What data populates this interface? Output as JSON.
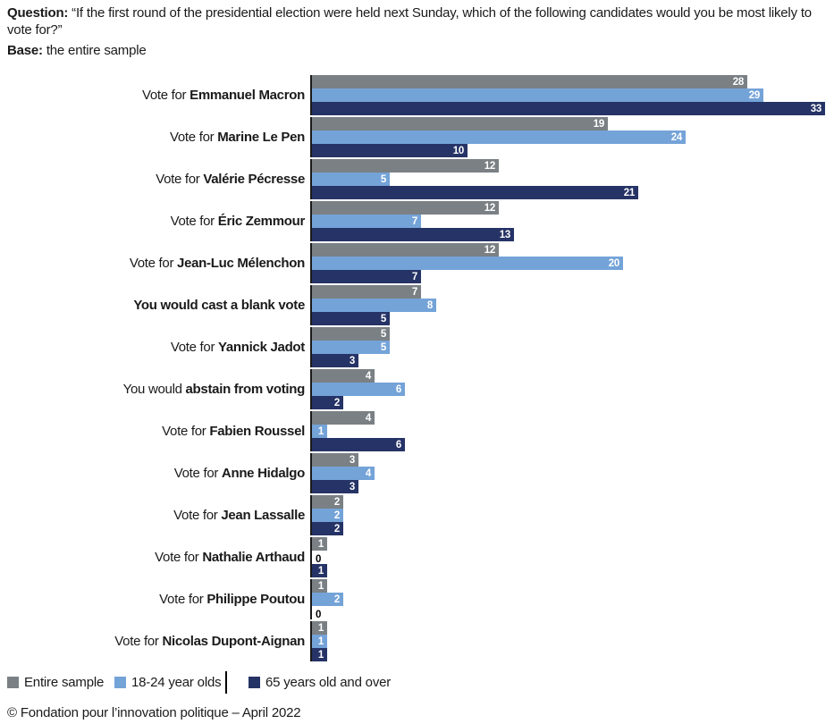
{
  "header": {
    "question_label": "Question:",
    "question_text": " “If the first round of the presidential election were held next Sunday, which of the following candidates would you be most likely to vote for?”",
    "base_label": "Base:",
    "base_text": " the entire sample"
  },
  "chart_data": {
    "type": "bar",
    "orientation": "horizontal",
    "value_unit": "percent",
    "xlim": [
      0,
      33
    ],
    "grid": false,
    "legend_position": "bottom",
    "value_labels": "inside-bar-end, white; zero values shown in black outside bar",
    "series": [
      {
        "name": "Entire sample",
        "color": "#7a8084"
      },
      {
        "name": "18-24 year olds",
        "color": "#74a3d8"
      },
      {
        "name": "65 years old and over",
        "color": "#263366"
      }
    ],
    "categories": [
      {
        "prefix": "Vote for ",
        "name": "Emmanuel Macron",
        "values": [
          28,
          29,
          33
        ]
      },
      {
        "prefix": "Vote for ",
        "name": "Marine Le Pen",
        "values": [
          19,
          24,
          10
        ]
      },
      {
        "prefix": "Vote for ",
        "name": "Valérie Pécresse",
        "values": [
          12,
          5,
          21
        ]
      },
      {
        "prefix": "Vote for ",
        "name": "Éric Zemmour",
        "values": [
          12,
          7,
          13
        ]
      },
      {
        "prefix": "Vote for ",
        "name": "Jean-Luc Mélenchon",
        "values": [
          12,
          20,
          7
        ]
      },
      {
        "prefix": "",
        "name": "You would cast a blank vote",
        "values": [
          7,
          8,
          5
        ]
      },
      {
        "prefix": "Vote for ",
        "name": "Yannick Jadot",
        "values": [
          5,
          5,
          3
        ]
      },
      {
        "prefix": "You would ",
        "name": "abstain from voting",
        "values": [
          4,
          6,
          2
        ]
      },
      {
        "prefix": "Vote for ",
        "name": "Fabien Roussel",
        "values": [
          4,
          1,
          6
        ]
      },
      {
        "prefix": "Vote for ",
        "name": "Anne Hidalgo",
        "values": [
          3,
          4,
          3
        ]
      },
      {
        "prefix": "Vote for ",
        "name": "Jean Lassalle",
        "values": [
          2,
          2,
          2
        ]
      },
      {
        "prefix": "Vote for ",
        "name": "Nathalie Arthaud",
        "values": [
          1,
          0,
          1
        ]
      },
      {
        "prefix": "Vote for ",
        "name": "Philippe Poutou",
        "values": [
          1,
          2,
          0
        ]
      },
      {
        "prefix": "Vote for ",
        "name": "Nicolas Dupont-Aignan",
        "values": [
          1,
          1,
          1
        ]
      }
    ]
  },
  "footer": {
    "copyright": "© Fondation pour l’innovation politique – April 2022"
  }
}
